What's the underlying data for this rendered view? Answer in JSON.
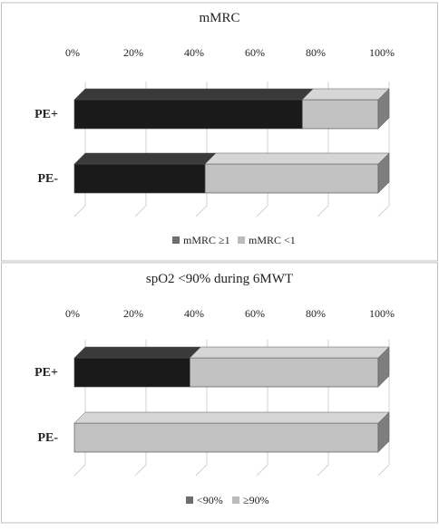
{
  "colors": {
    "border": "#bfbfbf",
    "grid": "#d0d0d0",
    "dark": "#1a1a1a",
    "light": "#c2c2c2",
    "legend_dark": "#6e6e6e",
    "legend_light": "#bcbcbc",
    "end_cap": "#7e7e7e"
  },
  "chart_data": [
    {
      "type": "bar",
      "orientation": "horizontal",
      "stacked": "percent",
      "title": "mMRC",
      "x_ticks": [
        "0%",
        "20%",
        "40%",
        "60%",
        "80%",
        "100%"
      ],
      "xlim": [
        0,
        100
      ],
      "categories": [
        "PE+",
        "PE-"
      ],
      "series": [
        {
          "name": "mMRC ≥1",
          "values": [
            75,
            43
          ]
        },
        {
          "name": "mMRC <1",
          "values": [
            25,
            57
          ]
        }
      ],
      "legend_position": "bottom",
      "grid": true
    },
    {
      "type": "bar",
      "orientation": "horizontal",
      "stacked": "percent",
      "title": "spO2 <90% during 6MWT",
      "x_ticks": [
        "0%",
        "20%",
        "40%",
        "60%",
        "80%",
        "100%"
      ],
      "xlim": [
        0,
        100
      ],
      "categories": [
        "PE+",
        "PE-"
      ],
      "series": [
        {
          "name": "<90%",
          "values": [
            38,
            0
          ]
        },
        {
          "name": "≥90%",
          "values": [
            62,
            100
          ]
        }
      ],
      "legend_position": "bottom",
      "grid": true
    }
  ]
}
